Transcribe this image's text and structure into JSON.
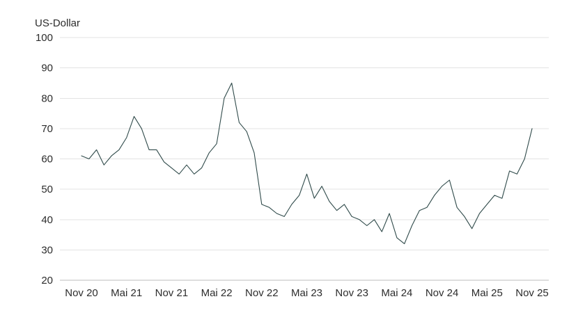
{
  "chart_data": {
    "type": "line",
    "title": "",
    "ylabel": "US-Dollar",
    "xlabel": "",
    "grid": true,
    "ylim": [
      20,
      100
    ],
    "yticks": [
      20,
      30,
      40,
      50,
      60,
      70,
      80,
      90,
      100
    ],
    "xticks": [
      "Nov 20",
      "Mai 21",
      "Nov 21",
      "Mai 22",
      "Nov 22",
      "Mai 23",
      "Nov 23",
      "Mai 24",
      "Nov 24",
      "Mai 25",
      "Nov 25"
    ],
    "x": [
      "2020-11",
      "2020-12",
      "2021-01",
      "2021-02",
      "2021-03",
      "2021-04",
      "2021-05",
      "2021-06",
      "2021-07",
      "2021-08",
      "2021-09",
      "2021-10",
      "2021-11",
      "2021-12",
      "2022-01",
      "2022-02",
      "2022-03",
      "2022-04",
      "2022-05",
      "2022-06",
      "2022-07",
      "2022-08",
      "2022-09",
      "2022-10",
      "2022-11",
      "2022-12",
      "2023-01",
      "2023-02",
      "2023-03",
      "2023-04",
      "2023-05",
      "2023-06",
      "2023-07",
      "2023-08",
      "2023-09",
      "2023-10",
      "2023-11",
      "2023-12",
      "2024-01",
      "2024-02",
      "2024-03",
      "2024-04",
      "2024-05",
      "2024-06",
      "2024-07",
      "2024-08",
      "2024-09",
      "2024-10",
      "2024-11",
      "2024-12",
      "2025-01",
      "2025-02",
      "2025-03",
      "2025-04",
      "2025-05",
      "2025-06",
      "2025-07",
      "2025-08",
      "2025-09",
      "2025-10",
      "2025-11"
    ],
    "series": [
      {
        "values": [
          61,
          60,
          63,
          58,
          61,
          63,
          67,
          74,
          70,
          63,
          63,
          59,
          57,
          55,
          58,
          55,
          57,
          62,
          65,
          80,
          85,
          72,
          69,
          62,
          45,
          44,
          42,
          41,
          45,
          48,
          55,
          47,
          51,
          46,
          43,
          45,
          41,
          40,
          38,
          40,
          36,
          42,
          34,
          32,
          38,
          43,
          44,
          48,
          51,
          53,
          44,
          41,
          37,
          42,
          45,
          48,
          47,
          56,
          55,
          60,
          70
        ]
      }
    ]
  }
}
